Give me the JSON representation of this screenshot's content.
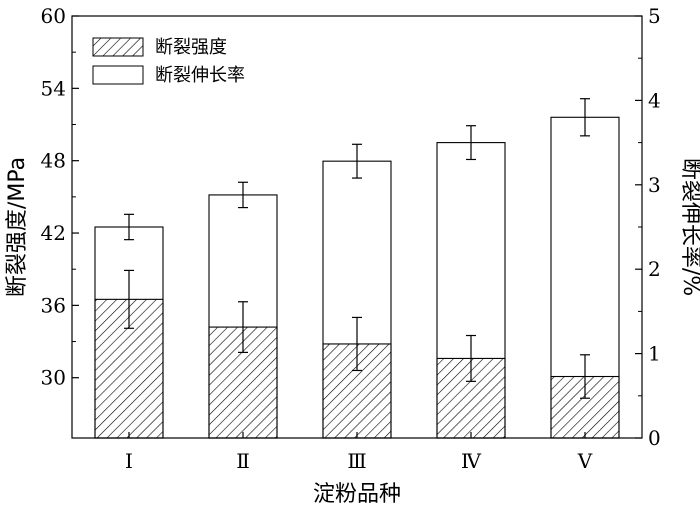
{
  "chart_data": {
    "type": "bar",
    "categories": [
      "Ⅰ",
      "Ⅱ",
      "Ⅲ",
      "Ⅳ",
      "Ⅴ"
    ],
    "xlabel": "淀粉品种",
    "y_left": {
      "label": "断裂强度/MPa",
      "lim": [
        25,
        60
      ],
      "ticks": [
        30,
        36,
        42,
        48,
        54,
        60
      ]
    },
    "y_right": {
      "label": "断裂伸长率/%",
      "lim": [
        0,
        5
      ],
      "ticks": [
        0,
        1,
        2,
        3,
        4,
        5
      ]
    },
    "series": [
      {
        "name": "断裂强度",
        "axis": "left",
        "pattern": "hatched",
        "values": [
          36.5,
          34.2,
          32.8,
          31.6,
          30.1
        ],
        "errors": [
          2.4,
          2.1,
          2.2,
          1.9,
          1.8
        ]
      },
      {
        "name": "断裂伸长率",
        "axis": "right",
        "pattern": "open",
        "values": [
          2.5,
          2.88,
          3.28,
          3.5,
          3.8
        ],
        "errors": [
          0.15,
          0.15,
          0.2,
          0.2,
          0.22
        ]
      }
    ],
    "legend_position": "top-left",
    "grid": false
  }
}
